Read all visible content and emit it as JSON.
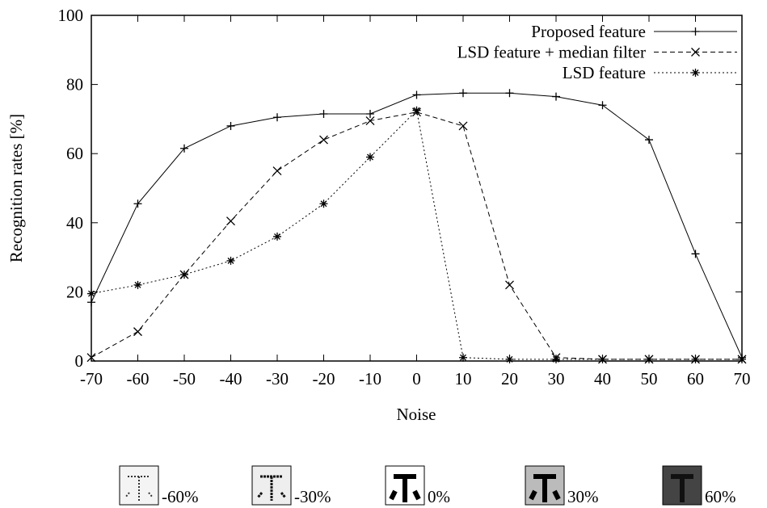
{
  "chart_data": {
    "type": "line",
    "x_label": "Noise",
    "y_label": "Recognition rates [%]",
    "x": [
      -70,
      -60,
      -50,
      -40,
      -30,
      -20,
      -10,
      0,
      10,
      20,
      30,
      40,
      50,
      60,
      70
    ],
    "series": [
      {
        "name": "Proposed feature",
        "color": "#000000",
        "dash": "solid",
        "marker": "plus",
        "values": [
          17,
          45.5,
          61.5,
          68,
          70.5,
          71.5,
          71.5,
          77,
          77.5,
          77.5,
          76.5,
          74,
          64,
          31,
          1
        ]
      },
      {
        "name": "LSD feature + median filter",
        "color": "#000000",
        "dash": "dashed",
        "marker": "cross",
        "values": [
          1,
          8.5,
          25,
          40.5,
          55,
          64,
          69.5,
          72,
          68,
          22,
          1,
          0.5,
          0.5,
          0.5,
          0.5
        ]
      },
      {
        "name": "LSD feature",
        "color": "#000000",
        "dash": "dotted",
        "marker": "star",
        "values": [
          19.5,
          22,
          25,
          29,
          36,
          45.5,
          59,
          72.5,
          1,
          0.5,
          0.5,
          0.5,
          0.5,
          0.5,
          0.5
        ]
      }
    ],
    "xlim": [
      -70,
      70
    ],
    "xticks": [
      -70,
      -60,
      -50,
      -40,
      -30,
      -20,
      -10,
      0,
      10,
      20,
      30,
      40,
      50,
      60,
      70
    ],
    "ylim": [
      0,
      100
    ],
    "yticks": [
      0,
      20,
      40,
      60,
      80,
      100
    ],
    "legend": "top-right",
    "noise_examples": [
      "-60%",
      "-30%",
      "0%",
      "30%",
      "60%"
    ]
  }
}
